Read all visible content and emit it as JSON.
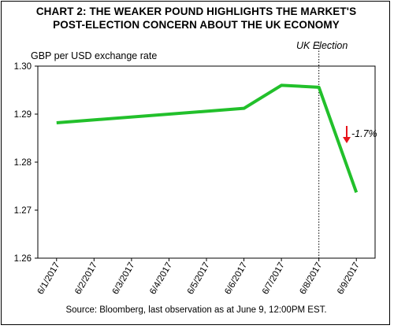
{
  "chart_data": {
    "type": "line",
    "title_line1": "CHART 2: THE WEAKER POUND HIGHLIGHTS THE MARKET'S",
    "title_line2": "POST-ELECTION CONCERN ABOUT THE UK ECONOMY",
    "ylabel": "GBP per USD exchange rate",
    "categories": [
      "6/1/2017",
      "6/2/2017",
      "6/3/2017",
      "6/4/2017",
      "6/5/2017",
      "6/6/2017",
      "6/7/2017",
      "6/8/2017",
      "6/9/2017"
    ],
    "series": [
      {
        "x": [
          "6/1/2017",
          "6/6/2017",
          "6/7/2017",
          "6/8/2017",
          "6/9/2017"
        ],
        "values": [
          1.2882,
          1.2912,
          1.296,
          1.2956,
          1.2737
        ],
        "color": "#22c02b"
      }
    ],
    "ylim": [
      1.26,
      1.3
    ],
    "yticks": [
      "1.26",
      "1.27",
      "1.28",
      "1.29",
      "1.30"
    ],
    "grid": false,
    "event_line": {
      "x": "6/8/2017",
      "label": "UK Election"
    },
    "annotation": {
      "text": "-1.7%",
      "arrow_color": "#e8141b"
    },
    "source": "Source: Bloomberg, last observation as at June 9, 12:00PM EST."
  }
}
